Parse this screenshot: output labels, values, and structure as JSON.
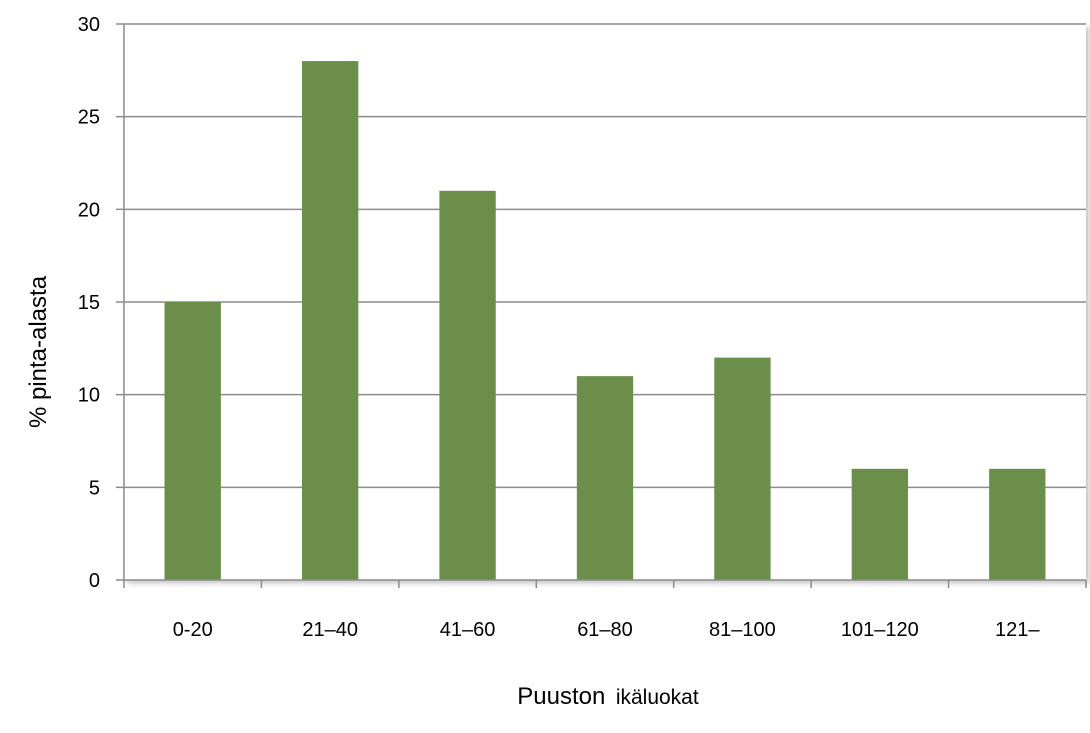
{
  "chart_data": {
    "type": "bar",
    "title": "",
    "categories": [
      "0-20",
      "21–40",
      "41–60",
      "61–80",
      "81–100",
      "101–120",
      "121–"
    ],
    "values": [
      15,
      28,
      21,
      11,
      12,
      6,
      6
    ],
    "ylabel": "% pinta-alasta",
    "xlabel_main": "Puuston",
    "xlabel_rest": "ikäluokat",
    "ylim": [
      0,
      30
    ],
    "yticks": [
      0,
      5,
      10,
      15,
      20,
      25,
      30
    ],
    "grid": true,
    "legend": "none",
    "bar_color": "#6b8f4a"
  }
}
